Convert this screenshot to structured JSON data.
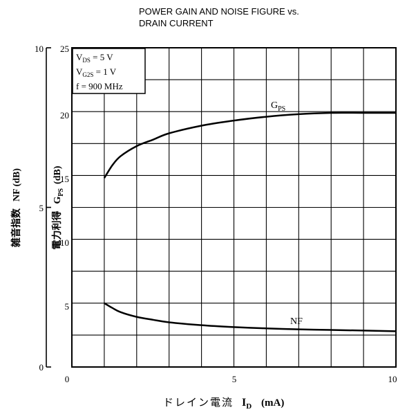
{
  "chart_data": {
    "type": "line",
    "title_line1": "POWER GAIN AND NOISE FIGURE vs.",
    "title_line2": "DRAIN CURRENT",
    "xlabel_prefix": "ドレイン電流",
    "xlabel_symbol": "I",
    "xlabel_symbol_sub": "D",
    "xlabel_unit": "(mA)",
    "ylabel_left_text": "雑音指数",
    "ylabel_left_symbol": "NF (dB)",
    "ylabel_right_text": "電力利得",
    "ylabel_right_symbol": "G",
    "ylabel_right_symbol_sub": "PS",
    "ylabel_right_unit": "(dB)",
    "xlim": [
      0,
      10
    ],
    "ylim_gps": [
      0,
      25
    ],
    "ylim_nf": [
      0,
      10
    ],
    "x_ticks": [
      "0",
      "5",
      "10"
    ],
    "gps_ticks": [
      "5",
      "10",
      "15",
      "20",
      "25"
    ],
    "nf_ticks": [
      "0",
      "5",
      "10"
    ],
    "grid": true,
    "conditions": [
      {
        "main": "V",
        "sub": "DS",
        "rest": " = 5 V"
      },
      {
        "main": "V",
        "sub": "G2S",
        "rest": " = 1 V"
      },
      {
        "main": "f",
        "sub": "",
        "rest": " = 900 MHz"
      }
    ],
    "series": [
      {
        "name": "G",
        "name_sub": "PS",
        "axis": "gps",
        "x": [
          1.0,
          1.25,
          1.5,
          2.0,
          2.5,
          3.0,
          4.0,
          5.0,
          6.0,
          7.0,
          8.0,
          9.0,
          10.0
        ],
        "y": [
          14.8,
          15.8,
          16.5,
          17.3,
          17.8,
          18.3,
          18.9,
          19.3,
          19.6,
          19.8,
          19.9,
          19.9,
          19.9
        ]
      },
      {
        "name": "NF",
        "name_sub": "",
        "axis": "nf",
        "x": [
          1.0,
          1.25,
          1.5,
          2.0,
          2.5,
          3.0,
          4.0,
          5.0,
          6.0,
          7.0,
          8.0,
          9.0,
          10.0
        ],
        "y": [
          2.0,
          1.85,
          1.72,
          1.57,
          1.48,
          1.4,
          1.31,
          1.25,
          1.21,
          1.18,
          1.16,
          1.14,
          1.12
        ]
      }
    ]
  }
}
